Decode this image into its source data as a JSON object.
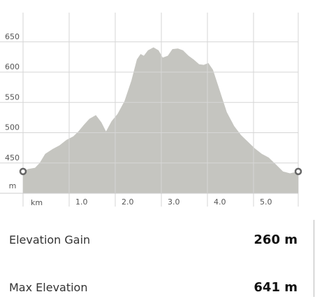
{
  "chart_data": {
    "type": "area",
    "x_label": "km",
    "y_label": "m",
    "x": [
      0,
      0.11,
      0.26,
      0.36,
      0.48,
      0.64,
      0.79,
      0.94,
      1.09,
      1.2,
      1.32,
      1.44,
      1.58,
      1.7,
      1.8,
      1.92,
      2.05,
      2.2,
      2.35,
      2.47,
      2.55,
      2.62,
      2.71,
      2.83,
      2.94,
      3.03,
      3.14,
      3.24,
      3.36,
      3.47,
      3.59,
      3.7,
      3.82,
      3.92,
      4.02,
      4.12,
      4.27,
      4.42,
      4.58,
      4.73,
      4.88,
      5.03,
      5.18,
      5.33,
      5.48,
      5.64,
      5.79,
      5.97
    ],
    "values": [
      436,
      440,
      442,
      450,
      465,
      473,
      479,
      488,
      494,
      502,
      513,
      523,
      529,
      517,
      502,
      519,
      531,
      552,
      586,
      621,
      630,
      627,
      636,
      641,
      636,
      624,
      627,
      638,
      639,
      636,
      627,
      621,
      613,
      612,
      615,
      604,
      569,
      534,
      511,
      496,
      485,
      474,
      465,
      459,
      448,
      436,
      433,
      436
    ],
    "color": "#c5c5c0",
    "xlim": [
      0,
      5.97
    ],
    "ylim": [
      400,
      696
    ],
    "xticks": [
      {
        "value": 1,
        "label": "1.0"
      },
      {
        "value": 2,
        "label": "2.0"
      },
      {
        "value": 3,
        "label": "3.0"
      },
      {
        "value": 4,
        "label": "4.0"
      },
      {
        "value": 5,
        "label": "5.0"
      }
    ],
    "yticks": [
      450,
      500,
      550,
      600,
      650
    ],
    "grid": true
  },
  "stats": [
    {
      "label": "Elevation Gain",
      "value": "260 m"
    },
    {
      "label": "Max Elevation",
      "value": "641 m"
    }
  ]
}
